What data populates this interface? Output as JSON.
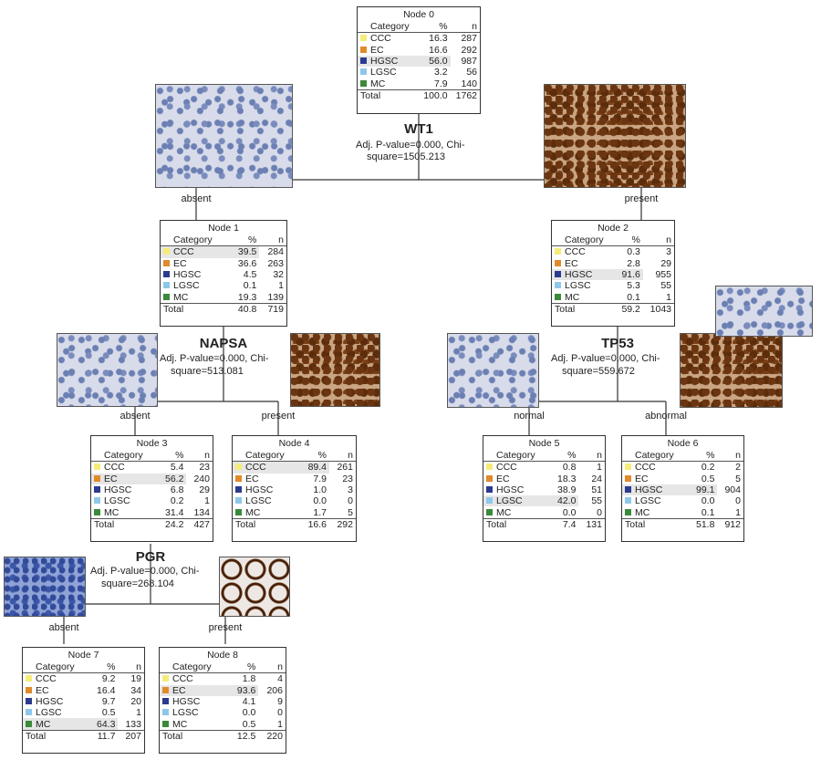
{
  "header_cols": {
    "category": "Category",
    "pct": "%",
    "n": "n"
  },
  "nodes": [
    {
      "id": "n0",
      "title": "Node 0",
      "hl": 2,
      "rows": [
        [
          "CCC",
          "16.3",
          "287"
        ],
        [
          "EC",
          "16.6",
          "292"
        ],
        [
          "HGSC",
          "56.0",
          "987"
        ],
        [
          "LGSC",
          "3.2",
          "56"
        ],
        [
          "MC",
          "7.9",
          "140"
        ]
      ],
      "total": [
        "Total",
        "100.0",
        "1762"
      ]
    },
    {
      "id": "n1",
      "title": "Node 1",
      "hl": 0,
      "rows": [
        [
          "CCC",
          "39.5",
          "284"
        ],
        [
          "EC",
          "36.6",
          "263"
        ],
        [
          "HGSC",
          "4.5",
          "32"
        ],
        [
          "LGSC",
          "0.1",
          "1"
        ],
        [
          "MC",
          "19.3",
          "139"
        ]
      ],
      "total": [
        "Total",
        "40.8",
        "719"
      ]
    },
    {
      "id": "n2",
      "title": "Node 2",
      "hl": 2,
      "rows": [
        [
          "CCC",
          "0.3",
          "3"
        ],
        [
          "EC",
          "2.8",
          "29"
        ],
        [
          "HGSC",
          "91.6",
          "955"
        ],
        [
          "LGSC",
          "5.3",
          "55"
        ],
        [
          "MC",
          "0.1",
          "1"
        ]
      ],
      "total": [
        "Total",
        "59.2",
        "1043"
      ]
    },
    {
      "id": "n3",
      "title": "Node 3",
      "hl": 1,
      "rows": [
        [
          "CCC",
          "5.4",
          "23"
        ],
        [
          "EC",
          "56.2",
          "240"
        ],
        [
          "HGSC",
          "6.8",
          "29"
        ],
        [
          "LGSC",
          "0.2",
          "1"
        ],
        [
          "MC",
          "31.4",
          "134"
        ]
      ],
      "total": [
        "Total",
        "24.2",
        "427"
      ]
    },
    {
      "id": "n4",
      "title": "Node 4",
      "hl": 0,
      "rows": [
        [
          "CCC",
          "89.4",
          "261"
        ],
        [
          "EC",
          "7.9",
          "23"
        ],
        [
          "HGSC",
          "1.0",
          "3"
        ],
        [
          "LGSC",
          "0.0",
          "0"
        ],
        [
          "MC",
          "1.7",
          "5"
        ]
      ],
      "total": [
        "Total",
        "16.6",
        "292"
      ]
    },
    {
      "id": "n5",
      "title": "Node 5",
      "hl": 3,
      "rows": [
        [
          "CCC",
          "0.8",
          "1"
        ],
        [
          "EC",
          "18.3",
          "24"
        ],
        [
          "HGSC",
          "38.9",
          "51"
        ],
        [
          "LGSC",
          "42.0",
          "55"
        ],
        [
          "MC",
          "0.0",
          "0"
        ]
      ],
      "total": [
        "Total",
        "7.4",
        "131"
      ]
    },
    {
      "id": "n6",
      "title": "Node 6",
      "hl": 2,
      "rows": [
        [
          "CCC",
          "0.2",
          "2"
        ],
        [
          "EC",
          "0.5",
          "5"
        ],
        [
          "HGSC",
          "99.1",
          "904"
        ],
        [
          "LGSC",
          "0.0",
          "0"
        ],
        [
          "MC",
          "0.1",
          "1"
        ]
      ],
      "total": [
        "Total",
        "51.8",
        "912"
      ]
    },
    {
      "id": "n7",
      "title": "Node 7",
      "hl": 4,
      "rows": [
        [
          "CCC",
          "9.2",
          "19"
        ],
        [
          "EC",
          "16.4",
          "34"
        ],
        [
          "HGSC",
          "9.7",
          "20"
        ],
        [
          "LGSC",
          "0.5",
          "1"
        ],
        [
          "MC",
          "64.3",
          "133"
        ]
      ],
      "total": [
        "Total",
        "11.7",
        "207"
      ]
    },
    {
      "id": "n8",
      "title": "Node 8",
      "hl": 1,
      "rows": [
        [
          "CCC",
          "1.8",
          "4"
        ],
        [
          "EC",
          "93.6",
          "206"
        ],
        [
          "HGSC",
          "4.1",
          "9"
        ],
        [
          "LGSC",
          "0.0",
          "0"
        ],
        [
          "MC",
          "0.5",
          "1"
        ]
      ],
      "total": [
        "Total",
        "12.5",
        "220"
      ]
    }
  ],
  "category_colors": {
    "CCC": "#f5ec7a",
    "EC": "#e08a2a",
    "HGSC": "#2b3a8f",
    "LGSC": "#8ec7ea",
    "MC": "#3a8a3a"
  },
  "splits": {
    "wt1": {
      "var": "WT1",
      "stat1": "Adj. P-value=0.000, Chi-",
      "stat2": "square=1505.213",
      "left": "absent",
      "right": "present"
    },
    "napsa": {
      "var": "NAPSA",
      "stat1": "Adj. P-value=0.000, Chi-",
      "stat2": "square=513.081",
      "left": "absent",
      "right": "present"
    },
    "tp53": {
      "var": "TP53",
      "stat1": "Adj. P-value=0.000, Chi-",
      "stat2": "square=559.672",
      "left": "normal",
      "right": "abnormal"
    },
    "pgr": {
      "var": "PGR",
      "stat1": "Adj. P-value=0.000, Chi-",
      "stat2": "square=268.104",
      "left": "absent",
      "right": "present"
    }
  }
}
